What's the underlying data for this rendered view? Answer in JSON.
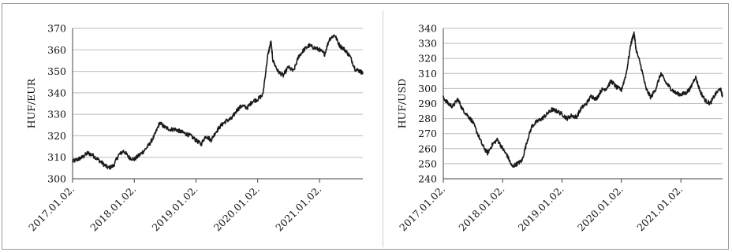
{
  "chart_data": [
    {
      "type": "line",
      "title": "",
      "xlabel": "",
      "ylabel": "HUF/EUR",
      "ylim": [
        300,
        370
      ],
      "yticks": [
        300,
        310,
        320,
        330,
        340,
        350,
        360,
        370
      ],
      "xticks": [
        "2017.01.02.",
        "2018.01.02.",
        "2019.01.02.",
        "2020.01.02.",
        "2021.01.02."
      ],
      "xlim": [
        "2017.01.02.",
        "2021.09.15."
      ],
      "grid": "horizontal",
      "line_color": "#1a1a1a",
      "x": [
        "2017.01.02.",
        "2017.02.01.",
        "2017.03.01.",
        "2017.04.01.",
        "2017.05.01.",
        "2017.06.01.",
        "2017.07.01.",
        "2017.08.01.",
        "2017.09.01.",
        "2017.10.01.",
        "2017.11.01.",
        "2017.12.01.",
        "2018.01.02.",
        "2018.02.01.",
        "2018.03.01.",
        "2018.04.01.",
        "2018.05.01.",
        "2018.06.01.",
        "2018.07.01.",
        "2018.08.01.",
        "2018.09.01.",
        "2018.10.01.",
        "2018.11.01.",
        "2018.12.01.",
        "2019.01.02.",
        "2019.02.01.",
        "2019.03.01.",
        "2019.04.01.",
        "2019.05.01.",
        "2019.06.01.",
        "2019.07.01.",
        "2019.08.01.",
        "2019.09.01.",
        "2019.10.01.",
        "2019.11.01.",
        "2019.12.01.",
        "2020.01.02.",
        "2020.02.01.",
        "2020.03.01.",
        "2020.03.20.",
        "2020.04.01.",
        "2020.05.01.",
        "2020.06.01.",
        "2020.07.01.",
        "2020.08.01.",
        "2020.09.01.",
        "2020.10.01.",
        "2020.11.01.",
        "2020.12.01.",
        "2021.01.02.",
        "2021.02.01.",
        "2021.03.01.",
        "2021.04.01.",
        "2021.05.01.",
        "2021.06.01.",
        "2021.07.01.",
        "2021.08.01.",
        "2021.09.01.",
        "2021.09.15."
      ],
      "values": [
        308,
        309,
        310,
        312,
        311,
        309,
        307,
        305,
        306,
        311,
        313,
        310,
        309,
        311,
        313,
        316,
        320,
        326,
        324,
        323,
        323,
        322,
        321,
        320,
        318,
        316,
        320,
        318,
        322,
        325,
        327,
        328,
        332,
        334,
        333,
        336,
        337,
        339,
        357,
        364,
        355,
        350,
        348,
        352,
        350,
        357,
        360,
        362,
        361,
        360,
        358,
        365,
        367,
        362,
        360,
        357,
        351,
        350,
        349
      ]
    },
    {
      "type": "line",
      "title": "",
      "xlabel": "",
      "ylabel": "HUF/USD",
      "ylim": [
        240,
        340
      ],
      "yticks": [
        240,
        250,
        260,
        270,
        280,
        290,
        300,
        310,
        320,
        330,
        340
      ],
      "xticks": [
        "2017.01.02.",
        "2018.01.02.",
        "2019.01.02.",
        "2020.01.02.",
        "2021.01.02."
      ],
      "xlim": [
        "2017.01.02.",
        "2021.09.15."
      ],
      "grid": "horizontal",
      "line_color": "#1a1a1a",
      "x": [
        "2017.01.02.",
        "2017.02.01.",
        "2017.03.01.",
        "2017.04.01.",
        "2017.05.01.",
        "2017.06.01.",
        "2017.07.01.",
        "2017.08.01.",
        "2017.09.01.",
        "2017.10.01.",
        "2017.11.01.",
        "2017.12.01.",
        "2018.01.02.",
        "2018.02.01.",
        "2018.03.01.",
        "2018.04.01.",
        "2018.05.01.",
        "2018.06.01.",
        "2018.07.01.",
        "2018.08.01.",
        "2018.09.01.",
        "2018.10.01.",
        "2018.11.01.",
        "2018.12.01.",
        "2019.01.02.",
        "2019.02.01.",
        "2019.03.01.",
        "2019.04.01.",
        "2019.05.01.",
        "2019.06.01.",
        "2019.07.01.",
        "2019.08.01.",
        "2019.09.01.",
        "2019.10.01.",
        "2019.11.01.",
        "2019.12.01.",
        "2020.01.02.",
        "2020.02.01.",
        "2020.03.01.",
        "2020.03.20.",
        "2020.04.01.",
        "2020.05.01.",
        "2020.06.01.",
        "2020.07.01.",
        "2020.08.01.",
        "2020.09.01.",
        "2020.10.01.",
        "2020.11.01.",
        "2020.12.01.",
        "2021.01.02.",
        "2021.02.01.",
        "2021.03.01.",
        "2021.04.01.",
        "2021.05.01.",
        "2021.06.01.",
        "2021.07.01.",
        "2021.08.01.",
        "2021.09.01.",
        "2021.09.15."
      ],
      "values": [
        294,
        290,
        288,
        293,
        286,
        282,
        278,
        270,
        262,
        257,
        263,
        266,
        260,
        255,
        248,
        250,
        252,
        265,
        275,
        278,
        280,
        283,
        286,
        285,
        283,
        280,
        282,
        281,
        287,
        290,
        295,
        293,
        299,
        300,
        305,
        301,
        299,
        310,
        330,
        337,
        326,
        315,
        300,
        294,
        300,
        310,
        304,
        300,
        297,
        296,
        297,
        300,
        308,
        298,
        292,
        290,
        296,
        300,
        295
      ]
    }
  ]
}
